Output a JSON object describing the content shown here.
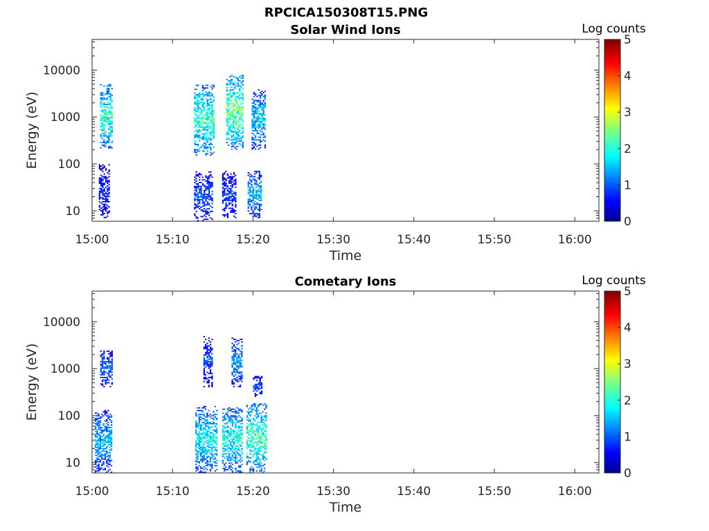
{
  "figure": {
    "title": "RPCICA150308T15.PNG"
  },
  "chart_data": [
    {
      "type": "heatmap",
      "title": "Solar Wind Ions",
      "xlabel": "Time",
      "ylabel": "Energy (eV)",
      "x_scale": "time",
      "y_scale": "log",
      "xlim": [
        "15:00",
        "16:03"
      ],
      "ylim": [
        6,
        45000
      ],
      "x_ticks": [
        "15:00",
        "15:10",
        "15:20",
        "15:30",
        "15:40",
        "15:50",
        "16:00"
      ],
      "y_ticks": [
        "10",
        "100",
        "1000",
        "10000"
      ],
      "colorbar": {
        "label": "Log counts",
        "range": [
          0,
          5
        ],
        "ticks": [
          "0",
          "1",
          "2",
          "3",
          "4",
          "5"
        ],
        "colormap": "jet"
      },
      "clusters": [
        {
          "t_start": "15:01:00",
          "t_end": "15:02:30",
          "e_min": 200,
          "e_max": 5000,
          "peak": 2.8
        },
        {
          "t_start": "15:00:50",
          "t_end": "15:02:10",
          "e_min": 7,
          "e_max": 100,
          "peak": 1.0
        },
        {
          "t_start": "15:12:40",
          "t_end": "15:15:10",
          "e_min": 150,
          "e_max": 5000,
          "peak": 2.9
        },
        {
          "t_start": "15:12:40",
          "t_end": "15:15:00",
          "e_min": 6,
          "e_max": 70,
          "peak": 1.3
        },
        {
          "t_start": "15:16:40",
          "t_end": "15:18:50",
          "e_min": 200,
          "e_max": 8000,
          "peak": 3.2
        },
        {
          "t_start": "15:16:10",
          "t_end": "15:18:00",
          "e_min": 7,
          "e_max": 70,
          "peak": 1.2
        },
        {
          "t_start": "15:19:50",
          "t_end": "15:21:40",
          "e_min": 200,
          "e_max": 4000,
          "peak": 2.2
        },
        {
          "t_start": "15:19:20",
          "t_end": "15:21:10",
          "e_min": 7,
          "e_max": 70,
          "peak": 2.0
        }
      ]
    },
    {
      "type": "heatmap",
      "title": "Cometary Ions",
      "xlabel": "Time",
      "ylabel": "Energy (eV)",
      "x_scale": "time",
      "y_scale": "log",
      "xlim": [
        "15:00",
        "16:03"
      ],
      "ylim": [
        6,
        45000
      ],
      "x_ticks": [
        "15:00",
        "15:10",
        "15:20",
        "15:30",
        "15:40",
        "15:50",
        "16:00"
      ],
      "y_ticks": [
        "10",
        "100",
        "1000",
        "10000"
      ],
      "colorbar": {
        "label": "Log counts",
        "range": [
          0,
          5
        ],
        "ticks": [
          "0",
          "1",
          "2",
          "3",
          "4",
          "5"
        ],
        "colormap": "jet"
      },
      "clusters": [
        {
          "t_start": "15:00:20",
          "t_end": "15:02:30",
          "e_min": 6,
          "e_max": 130,
          "peak": 2.0
        },
        {
          "t_start": "15:01:00",
          "t_end": "15:02:30",
          "e_min": 400,
          "e_max": 2500,
          "peak": 1.5
        },
        {
          "t_start": "15:12:50",
          "t_end": "15:15:40",
          "e_min": 6,
          "e_max": 160,
          "peak": 2.5
        },
        {
          "t_start": "15:13:50",
          "t_end": "15:15:00",
          "e_min": 400,
          "e_max": 5000,
          "peak": 1.2
        },
        {
          "t_start": "15:16:10",
          "t_end": "15:18:40",
          "e_min": 6,
          "e_max": 150,
          "peak": 2.6
        },
        {
          "t_start": "15:17:20",
          "t_end": "15:18:40",
          "e_min": 400,
          "e_max": 4500,
          "peak": 1.8
        },
        {
          "t_start": "15:19:10",
          "t_end": "15:21:50",
          "e_min": 6,
          "e_max": 180,
          "peak": 3.0
        },
        {
          "t_start": "15:20:00",
          "t_end": "15:21:10",
          "e_min": 250,
          "e_max": 700,
          "peak": 1.3
        }
      ]
    }
  ]
}
